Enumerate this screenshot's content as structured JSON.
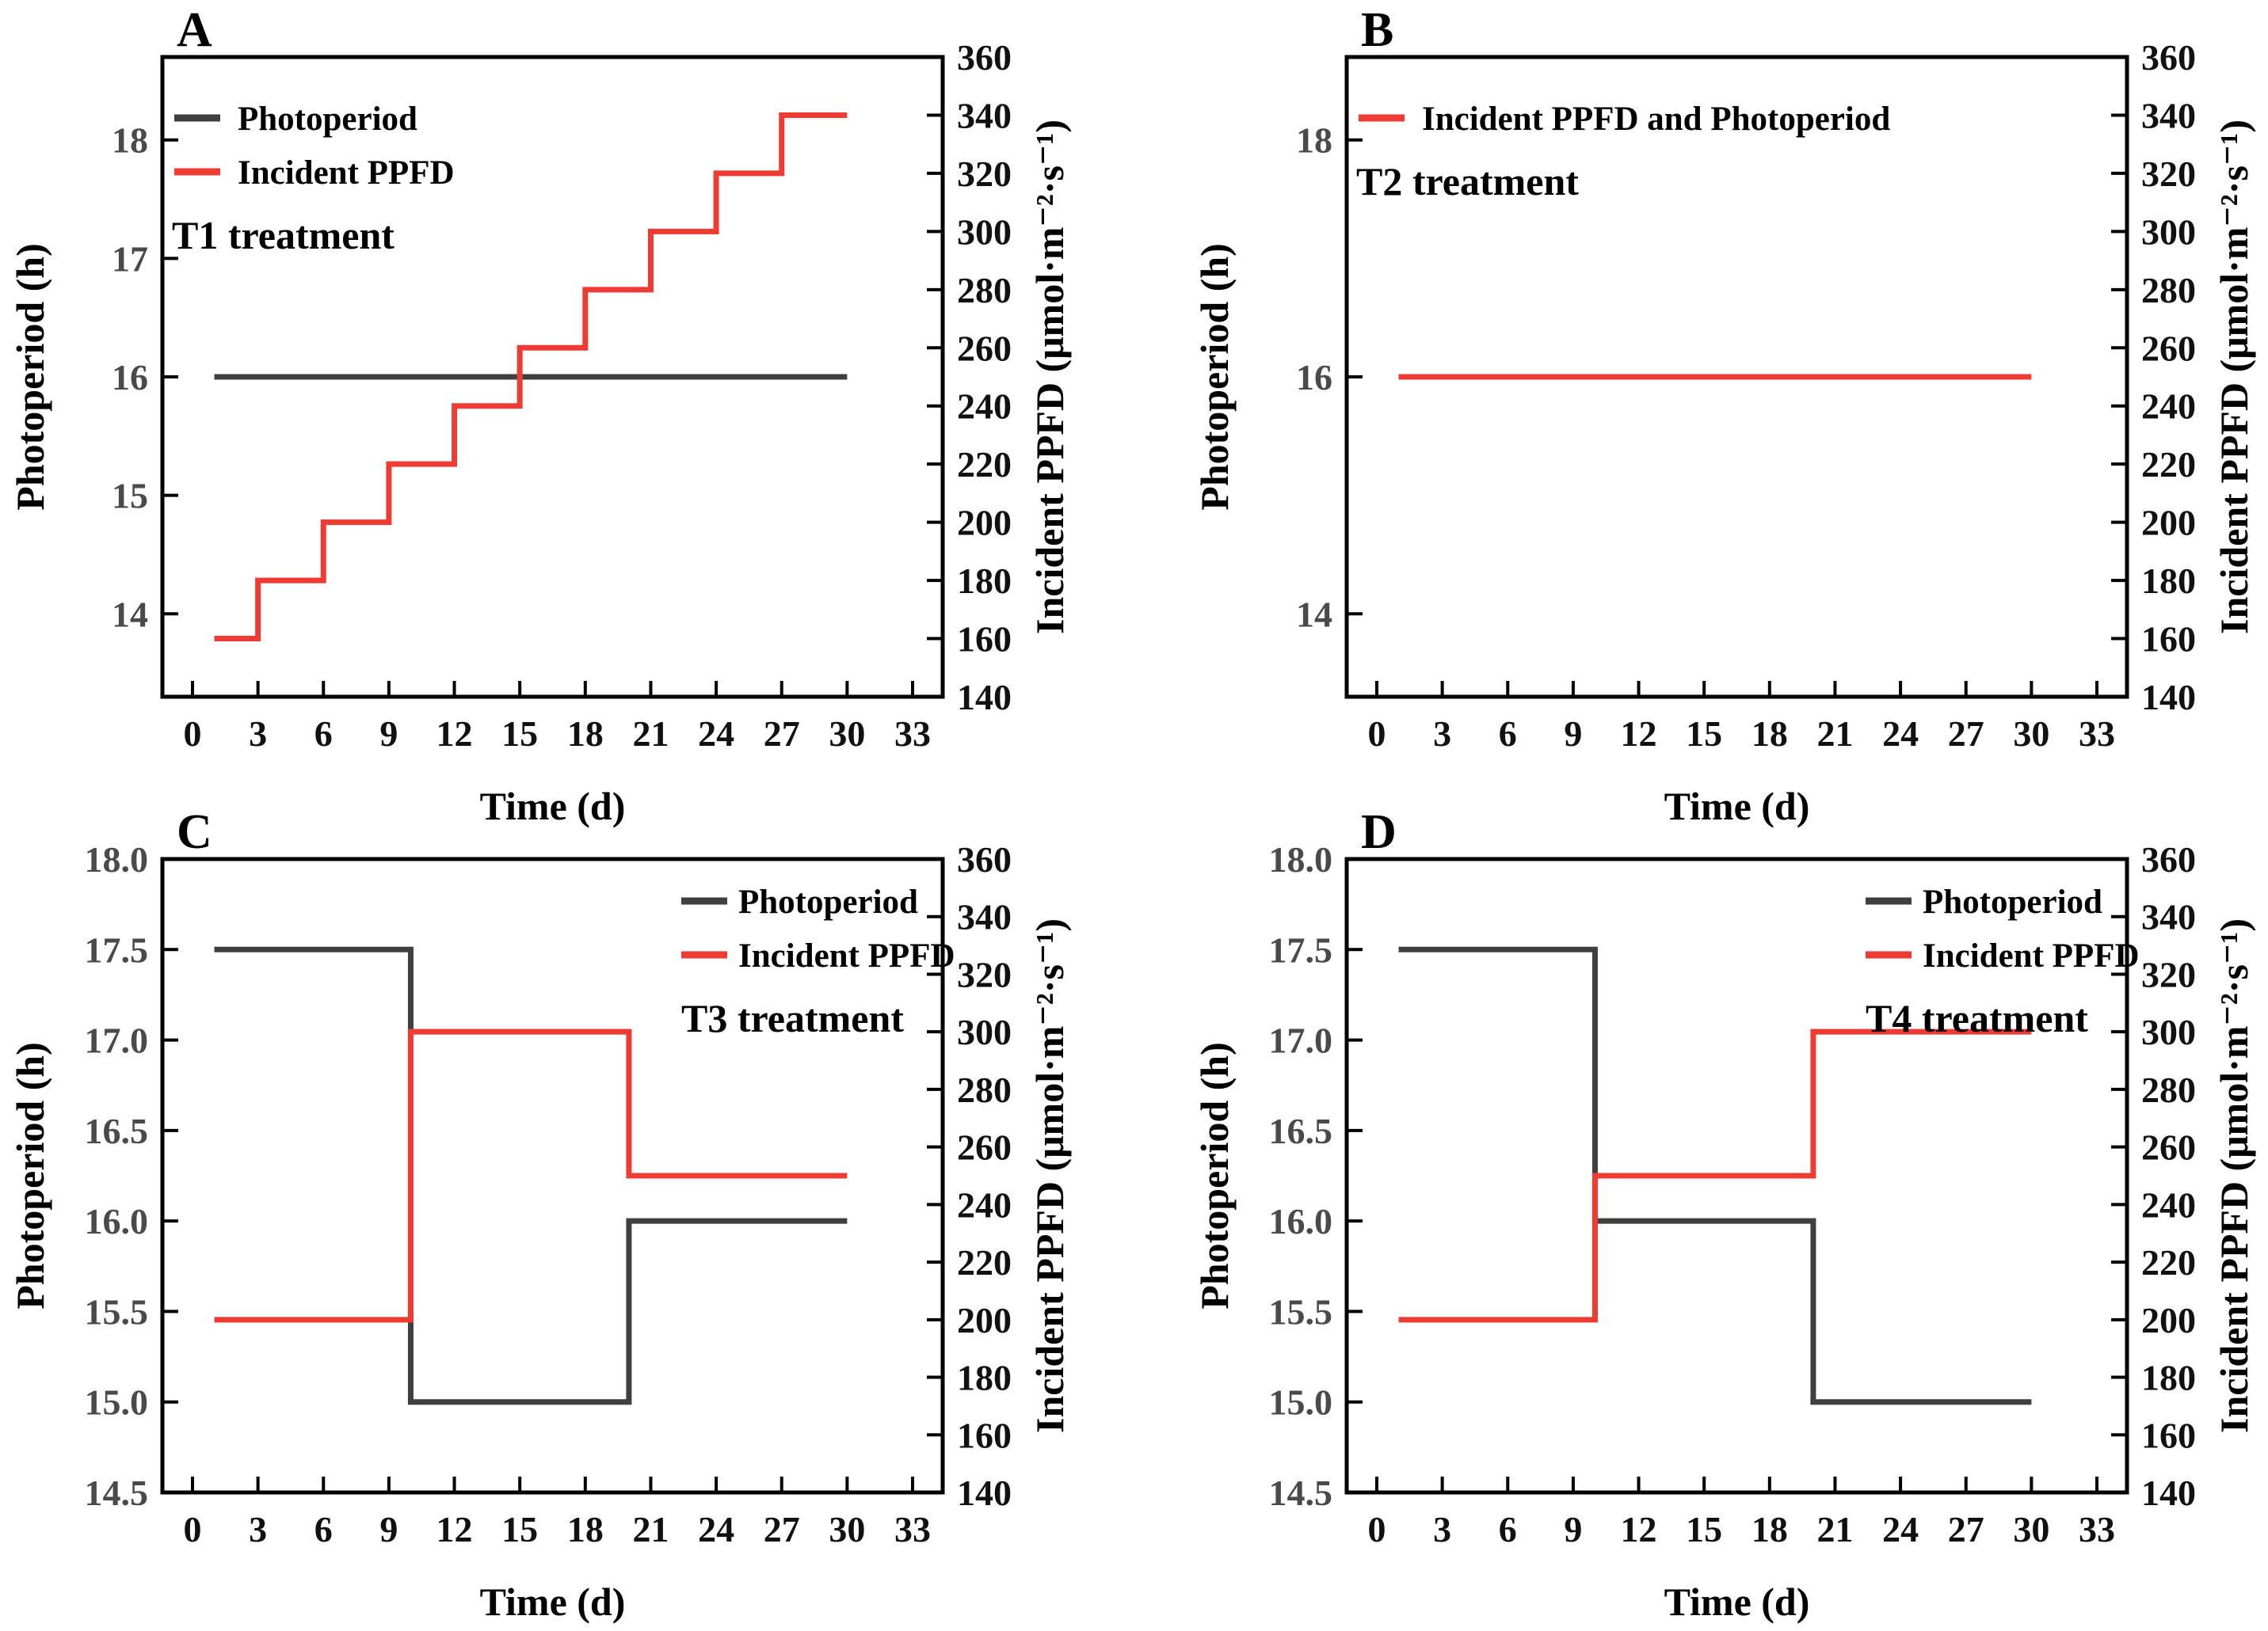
{
  "figure": {
    "background": "#fefefe",
    "colors": {
      "photoperiod_line": "#3f3f3f",
      "ppfd_line": "#ee3b33",
      "axis": "#000000",
      "left_tick_label": "#4a4a4a",
      "tick_label": "#111111",
      "text": "#000000"
    },
    "x_axis": {
      "label": "Time (d)",
      "range": [
        0,
        33
      ],
      "tick_values": [
        0,
        3,
        6,
        9,
        12,
        15,
        18,
        21,
        24,
        27,
        30,
        33
      ],
      "tick_labels": [
        "0",
        "3",
        "6",
        "9",
        "12",
        "15",
        "18",
        "21",
        "24",
        "27",
        "30",
        "33"
      ]
    },
    "right_axis": {
      "label": "Incident PPFD (μmol·m⁻²·s⁻¹)",
      "range": [
        140,
        360
      ],
      "tick_values": [
        140,
        160,
        180,
        200,
        220,
        240,
        260,
        280,
        300,
        320,
        340,
        360
      ],
      "tick_labels": [
        "140",
        "160",
        "180",
        "200",
        "220",
        "240",
        "260",
        "280",
        "300",
        "320",
        "340",
        "360"
      ]
    },
    "left_axis_title": "Photoperiod (h)"
  },
  "chart_data": [
    {
      "panel": "A",
      "type": "line",
      "title": "A",
      "treatment": "T1 treatment",
      "legend": {
        "position": "top-left",
        "items": [
          {
            "label": "Photoperiod",
            "series": "photoperiod"
          },
          {
            "label": "Incident PPFD",
            "series": "ppfd"
          }
        ]
      },
      "left_axis": {
        "label": "Photoperiod (h)",
        "range": [
          13.3,
          18.7
        ],
        "tick_values": [
          14,
          15,
          16,
          17,
          18
        ],
        "tick_labels": [
          "14",
          "15",
          "16",
          "17",
          "18"
        ]
      },
      "series": [
        {
          "key": "photoperiod",
          "name": "Photoperiod",
          "axis": "left",
          "unit": "h",
          "segments": [
            [
              1,
              30,
              16
            ]
          ]
        },
        {
          "key": "ppfd",
          "name": "Incident PPFD",
          "axis": "right",
          "unit": "μmol·m⁻²·s⁻¹",
          "segments": [
            [
              1,
              3,
              160
            ],
            [
              3,
              6,
              180
            ],
            [
              6,
              9,
              200
            ],
            [
              9,
              12,
              220
            ],
            [
              12,
              15,
              240
            ],
            [
              15,
              18,
              260
            ],
            [
              18,
              21,
              280
            ],
            [
              21,
              24,
              300
            ],
            [
              24,
              27,
              320
            ],
            [
              27,
              30,
              340
            ]
          ]
        }
      ]
    },
    {
      "panel": "B",
      "type": "line",
      "title": "B",
      "treatment": "T2 treatment",
      "legend": {
        "position": "top-left",
        "items": [
          {
            "label": "Incident PPFD and Photoperiod",
            "series": "ppfd"
          }
        ]
      },
      "left_axis": {
        "label": "Photoperiod (h)",
        "range": [
          13.3,
          18.7
        ],
        "tick_values": [
          14,
          16,
          18
        ],
        "tick_labels": [
          "14",
          "16",
          "18"
        ]
      },
      "series": [
        {
          "key": "ppfd",
          "name": "Incident PPFD and Photoperiod",
          "axis": "right",
          "unit": "μmol·m⁻²·s⁻¹",
          "photoperiod_h": 16,
          "segments": [
            [
              1,
              30,
              250
            ]
          ]
        }
      ]
    },
    {
      "panel": "C",
      "type": "line",
      "title": "C",
      "treatment": "T3 treatment",
      "legend": {
        "position": "top-right",
        "items": [
          {
            "label": "Photoperiod",
            "series": "photoperiod"
          },
          {
            "label": "Incident PPFD",
            "series": "ppfd"
          }
        ]
      },
      "left_axis": {
        "label": "Photoperiod (h)",
        "range": [
          14.5,
          18.0
        ],
        "tick_values": [
          14.5,
          15.0,
          15.5,
          16.0,
          16.5,
          17.0,
          17.5,
          18.0
        ],
        "tick_labels": [
          "14.5",
          "15.0",
          "15.5",
          "16.0",
          "16.5",
          "17.0",
          "17.5",
          "18.0"
        ]
      },
      "series": [
        {
          "key": "photoperiod",
          "name": "Photoperiod",
          "axis": "left",
          "unit": "h",
          "segments": [
            [
              1,
              10,
              17.5
            ],
            [
              10,
              20,
              15.0
            ],
            [
              20,
              30,
              16.0
            ]
          ]
        },
        {
          "key": "ppfd",
          "name": "Incident PPFD",
          "axis": "right",
          "unit": "μmol·m⁻²·s⁻¹",
          "segments": [
            [
              1,
              10,
              200
            ],
            [
              10,
              20,
              300
            ],
            [
              20,
              30,
              250
            ]
          ]
        }
      ]
    },
    {
      "panel": "D",
      "type": "line",
      "title": "D",
      "treatment": "T4 treatment",
      "legend": {
        "position": "top-right",
        "items": [
          {
            "label": "Photoperiod",
            "series": "photoperiod"
          },
          {
            "label": "Incident PPFD",
            "series": "ppfd"
          }
        ]
      },
      "left_axis": {
        "label": "Photoperiod (h)",
        "range": [
          14.5,
          18.0
        ],
        "tick_values": [
          14.5,
          15.0,
          15.5,
          16.0,
          16.5,
          17.0,
          17.5,
          18.0
        ],
        "tick_labels": [
          "14.5",
          "15.0",
          "15.5",
          "16.0",
          "16.5",
          "17.0",
          "17.5",
          "18.0"
        ]
      },
      "series": [
        {
          "key": "photoperiod",
          "name": "Photoperiod",
          "axis": "left",
          "unit": "h",
          "segments": [
            [
              1,
              10,
              17.5
            ],
            [
              10,
              20,
              16.0
            ],
            [
              20,
              30,
              15.0
            ]
          ]
        },
        {
          "key": "ppfd",
          "name": "Incident PPFD",
          "axis": "right",
          "unit": "μmol·m⁻²·s⁻¹",
          "segments": [
            [
              1,
              10,
              200
            ],
            [
              10,
              20,
              250
            ],
            [
              20,
              30,
              300
            ]
          ]
        }
      ]
    }
  ]
}
